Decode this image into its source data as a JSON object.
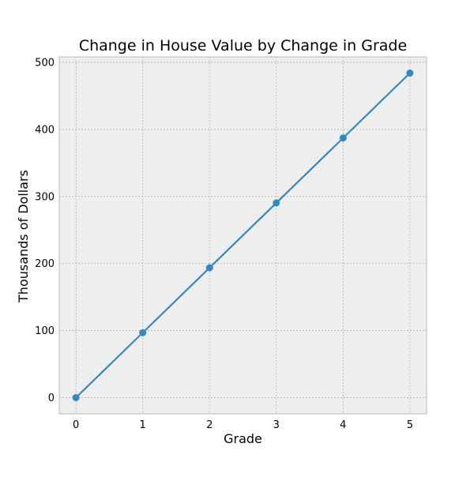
{
  "chart_data": {
    "type": "line",
    "title": "Change in House Value by Change in Grade",
    "xlabel": "Grade",
    "ylabel": "Thousands of Dollars",
    "x": [
      0,
      1,
      2,
      3,
      4,
      5
    ],
    "series": [
      {
        "values": [
          0,
          96.8,
          193.6,
          290.4,
          387.2,
          484.0
        ],
        "color": "#348ABD"
      }
    ],
    "xticks": [
      0,
      1,
      2,
      3,
      4,
      5
    ],
    "yticks": [
      0,
      100,
      200,
      300,
      400,
      500
    ],
    "xlim": [
      -0.25,
      5.25
    ],
    "ylim": [
      -24.2,
      508.2
    ],
    "grid": true,
    "background": "#EEEEEE",
    "grid_color": "#B2B2B2",
    "marker": "circle"
  }
}
